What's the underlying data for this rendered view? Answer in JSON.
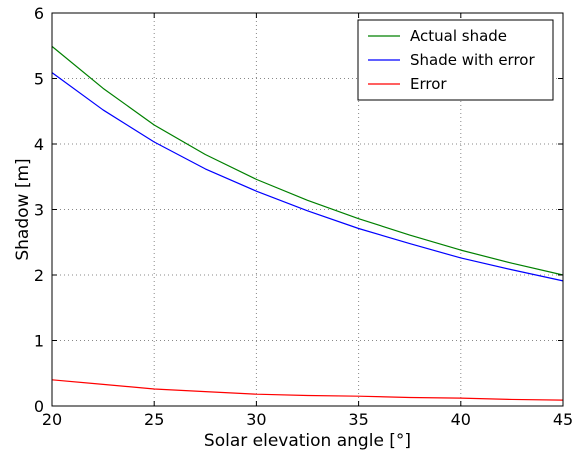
{
  "chart_data": {
    "type": "line",
    "title": "",
    "xlabel": "Solar elevation angle [°]",
    "ylabel": "Shadow [m]",
    "xlim": [
      20,
      45
    ],
    "ylim": [
      0,
      6
    ],
    "xticks": [
      20,
      25,
      30,
      35,
      40,
      45
    ],
    "yticks": [
      0,
      1,
      2,
      3,
      4,
      5,
      6
    ],
    "xtick_labels": [
      "20",
      "25",
      "30",
      "35",
      "40",
      "45"
    ],
    "ytick_labels": [
      "0",
      "1",
      "2",
      "3",
      "4",
      "5",
      "6"
    ],
    "grid": true,
    "legend_position": "top-right",
    "x": [
      20,
      22.5,
      25,
      27.5,
      30,
      32.5,
      35,
      37.5,
      40,
      42.5,
      45
    ],
    "series": [
      {
        "name": "Actual shade",
        "color": "#008000",
        "values": [
          5.49,
          4.85,
          4.29,
          3.84,
          3.46,
          3.14,
          2.86,
          2.61,
          2.38,
          2.18,
          2.0
        ]
      },
      {
        "name": "Shade with error",
        "color": "#0000ff",
        "values": [
          5.09,
          4.52,
          4.03,
          3.62,
          3.28,
          2.98,
          2.71,
          2.48,
          2.26,
          2.08,
          1.91
        ]
      },
      {
        "name": "Error",
        "color": "#ff0000",
        "values": [
          0.4,
          0.33,
          0.26,
          0.22,
          0.18,
          0.16,
          0.15,
          0.13,
          0.12,
          0.1,
          0.09
        ]
      }
    ]
  }
}
